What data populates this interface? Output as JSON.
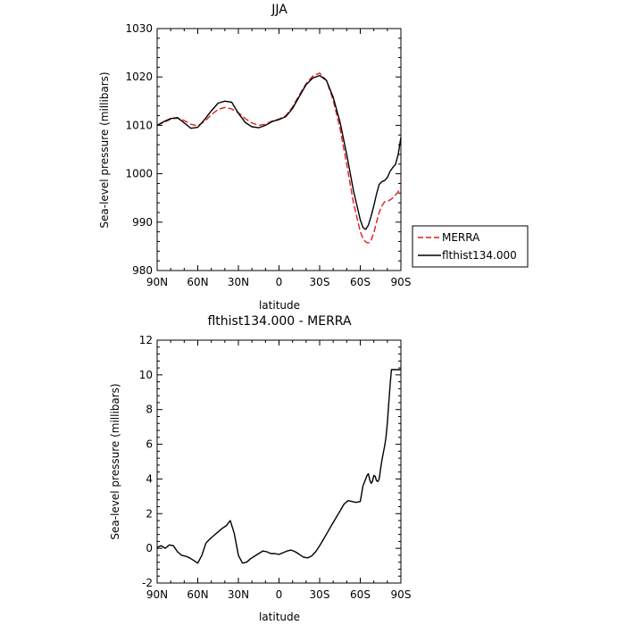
{
  "chart_data": [
    {
      "type": "line",
      "title": "JJA",
      "xlabel": "latitude",
      "ylabel": "Sea-level pressure (millibars)",
      "x_ticks": [
        "90N",
        "60N",
        "30N",
        "0",
        "30S",
        "60S",
        "90S"
      ],
      "x_tick_values": [
        -90,
        -60,
        -30,
        0,
        30,
        60,
        90
      ],
      "x_range": [
        -90,
        90
      ],
      "y_range": [
        980,
        1030
      ],
      "y_ticks": [
        980,
        990,
        1000,
        1010,
        1020,
        1030
      ],
      "legend": [
        "MERRA",
        "flthist134.000"
      ],
      "series": [
        {
          "name": "MERRA",
          "color": "#e41a1c",
          "dash": true,
          "x": [
            -90,
            -85,
            -80,
            -75,
            -70,
            -65,
            -60,
            -55,
            -50,
            -45,
            -40,
            -35,
            -30,
            -25,
            -20,
            -15,
            -10,
            -5,
            0,
            5,
            10,
            15,
            20,
            25,
            30,
            35,
            40,
            45,
            50,
            55,
            60,
            62,
            64,
            66,
            68,
            70,
            72,
            74,
            76,
            78,
            80,
            82,
            84,
            86,
            88,
            90
          ],
          "y": [
            1010.0,
            1010.6,
            1011.3,
            1011.5,
            1011.0,
            1010.2,
            1009.9,
            1010.8,
            1012.2,
            1013.3,
            1013.7,
            1013.4,
            1012.6,
            1011.4,
            1010.5,
            1010.0,
            1010.2,
            1010.9,
            1011.3,
            1012.0,
            1013.8,
            1016.3,
            1018.6,
            1020.2,
            1020.8,
            1019.3,
            1015.2,
            1009.4,
            1002.0,
            994.0,
            988.0,
            986.7,
            985.9,
            985.7,
            986.2,
            987.8,
            990.0,
            992.0,
            993.4,
            994.2,
            994.3,
            994.6,
            995.0,
            995.6,
            996.3,
            997.2
          ]
        },
        {
          "name": "flthist134.000",
          "color": "#000000",
          "dash": false,
          "x": [
            -90,
            -85,
            -80,
            -75,
            -70,
            -65,
            -60,
            -55,
            -50,
            -45,
            -40,
            -35,
            -30,
            -25,
            -20,
            -15,
            -10,
            -5,
            0,
            5,
            10,
            15,
            20,
            25,
            30,
            35,
            40,
            45,
            50,
            55,
            60,
            62,
            64,
            66,
            68,
            70,
            72,
            74,
            76,
            78,
            80,
            82,
            84,
            86,
            88,
            90
          ],
          "y": [
            1010.0,
            1010.8,
            1011.4,
            1011.6,
            1010.5,
            1009.4,
            1009.6,
            1011.2,
            1013.0,
            1014.6,
            1015.0,
            1014.8,
            1012.5,
            1010.6,
            1009.7,
            1009.5,
            1010.0,
            1010.8,
            1011.2,
            1011.8,
            1013.5,
            1016.0,
            1018.4,
            1019.8,
            1020.3,
            1019.3,
            1015.8,
            1010.7,
            1004.0,
            996.5,
            990.5,
            988.9,
            988.5,
            989.4,
            991.2,
            993.4,
            995.8,
            997.8,
            998.4,
            998.6,
            999.2,
            1000.5,
            1001.3,
            1001.9,
            1004.0,
            1007.5
          ]
        }
      ]
    },
    {
      "type": "line",
      "title": "flthist134.000 - MERRA",
      "xlabel": "latitude",
      "ylabel": "Sea-level pressure (millibars)",
      "x_ticks": [
        "90N",
        "60N",
        "30N",
        "0",
        "30S",
        "60S",
        "90S"
      ],
      "x_tick_values": [
        -90,
        -60,
        -30,
        0,
        30,
        60,
        90
      ],
      "x_range": [
        -90,
        90
      ],
      "y_range": [
        -2,
        12
      ],
      "y_ticks": [
        -2,
        0,
        2,
        4,
        6,
        8,
        10,
        12
      ],
      "series": [
        {
          "color": "#000000",
          "dash": false,
          "x": [
            -90,
            -87,
            -84,
            -81,
            -78,
            -75,
            -72,
            -69,
            -66,
            -63,
            -60,
            -57,
            -54,
            -51,
            -48,
            -45,
            -42,
            -39,
            -36,
            -33,
            -30,
            -27,
            -24,
            -21,
            -18,
            -15,
            -12,
            -9,
            -6,
            -3,
            0,
            3,
            6,
            9,
            12,
            15,
            18,
            21,
            24,
            27,
            30,
            33,
            36,
            39,
            42,
            45,
            48,
            51,
            54,
            57,
            60,
            62,
            64,
            65,
            66,
            67,
            68,
            69,
            70,
            71,
            72,
            73,
            74,
            75,
            76,
            77,
            78,
            79,
            80,
            81,
            82,
            83,
            84,
            85,
            86,
            87,
            88,
            89,
            90
          ],
          "y": [
            0.05,
            0.15,
            0.0,
            0.2,
            0.15,
            -0.2,
            -0.4,
            -0.45,
            -0.55,
            -0.7,
            -0.85,
            -0.4,
            0.3,
            0.55,
            0.75,
            0.95,
            1.15,
            1.3,
            1.6,
            0.85,
            -0.4,
            -0.85,
            -0.8,
            -0.6,
            -0.45,
            -0.3,
            -0.15,
            -0.2,
            -0.3,
            -0.3,
            -0.35,
            -0.25,
            -0.15,
            -0.1,
            -0.2,
            -0.35,
            -0.5,
            -0.55,
            -0.45,
            -0.2,
            0.15,
            0.55,
            0.95,
            1.35,
            1.75,
            2.15,
            2.55,
            2.75,
            2.7,
            2.65,
            2.7,
            3.6,
            4.0,
            4.2,
            4.3,
            3.95,
            3.75,
            3.85,
            4.2,
            4.15,
            3.9,
            3.85,
            4.0,
            4.6,
            5.1,
            5.5,
            5.9,
            6.4,
            7.2,
            8.3,
            9.4,
            10.3,
            10.3,
            10.3,
            10.3,
            10.3,
            10.3,
            10.3,
            10.3
          ]
        }
      ]
    }
  ]
}
